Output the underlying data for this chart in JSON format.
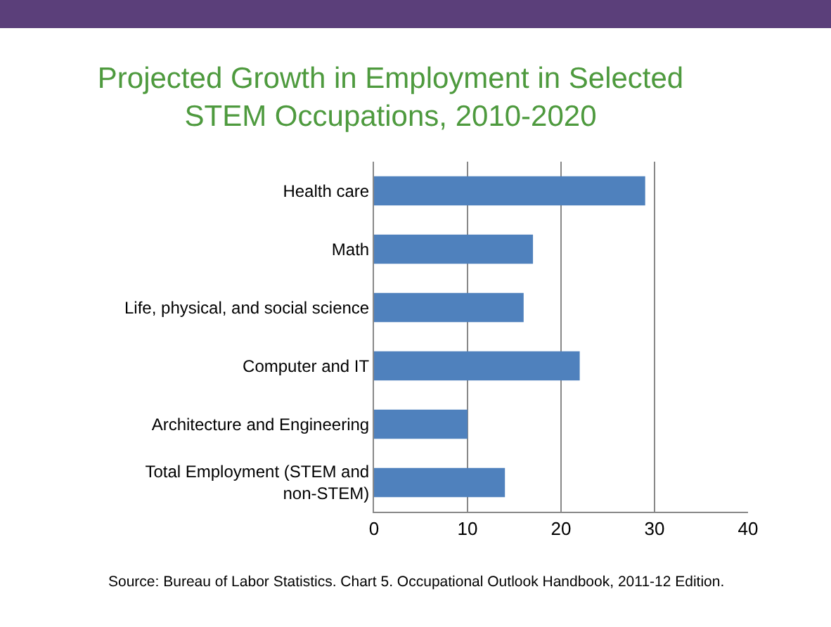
{
  "chart_data": {
    "type": "bar",
    "orientation": "horizontal",
    "title": "Projected Growth in Employment in Selected STEM Occupations, 2010-2020",
    "categories": [
      "Health care",
      "Math",
      "Life, physical, and social science",
      "Computer and IT",
      "Architecture and Engineering",
      "Total Employment (STEM and non-STEM)"
    ],
    "values": [
      29,
      17,
      16,
      22,
      10,
      14
    ],
    "color": "#4f81bd",
    "xlim": [
      0,
      40
    ],
    "xticks": [
      0,
      10,
      20,
      30,
      40
    ],
    "grid": "x",
    "annotations": [
      "Source: Bureau of Labor Statistics. Chart 5. Occupational Outlook Handbook, 2011-12 Edition."
    ]
  }
}
